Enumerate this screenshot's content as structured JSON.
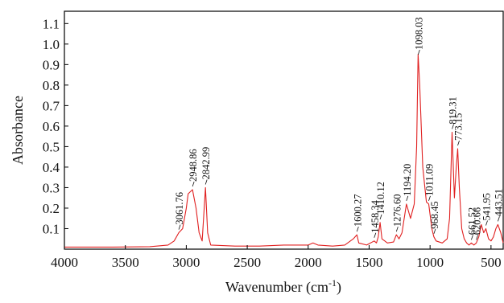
{
  "chart_data": {
    "type": "line",
    "title": "",
    "xlabel": "Wavenumber (cm",
    "xlabel_sup": "-1",
    "xlabel_close": ")",
    "ylabel": "Absorbance",
    "xlim": [
      4000,
      400
    ],
    "x_reversed": true,
    "ylim": [
      0,
      1.16
    ],
    "grid": false,
    "legend": "none",
    "x_ticks": [
      4000,
      3500,
      3000,
      2500,
      2000,
      1500,
      1000,
      500
    ],
    "x_tick_labels": [
      "4000",
      "3500",
      "3000",
      "2500",
      "2000",
      "1500",
      "1000",
      "500"
    ],
    "y_ticks": [
      0.1,
      0.2,
      0.3,
      0.4,
      0.5,
      0.6,
      0.7,
      0.8,
      0.9,
      1.0,
      1.1
    ],
    "y_tick_labels": [
      "0.1",
      "0.2",
      "0.3",
      "0.4",
      "0.5",
      "0.6",
      "0.7",
      "0.8",
      "0.9",
      "1.0",
      "1.1"
    ],
    "line_color": "#e02020",
    "series": [
      {
        "x": [
          4000,
          3600,
          3300,
          3150,
          3100,
          3061.76,
          3030,
          3000,
          2985,
          2948.86,
          2920,
          2895,
          2870,
          2842.99,
          2825,
          2800,
          2600,
          2400,
          2200,
          2000,
          1960,
          1940,
          1920,
          1800,
          1700,
          1630,
          1600.27,
          1585,
          1520,
          1458.34,
          1440,
          1425,
          1410.12,
          1395,
          1350,
          1300,
          1276.6,
          1255,
          1230,
          1194.2,
          1160,
          1130,
          1110,
          1098.03,
          1085,
          1060,
          1030,
          1011.09,
          985,
          968.45,
          950,
          900,
          860,
          840,
          819.31,
          800,
          785,
          773.15,
          760,
          740,
          720,
          700,
          680,
          661.52,
          640,
          620.66,
          600,
          580,
          560,
          541.95,
          520,
          500,
          480,
          460,
          443.51,
          420,
          400
        ],
        "y": [
          0.01,
          0.01,
          0.012,
          0.02,
          0.04,
          0.08,
          0.1,
          0.2,
          0.27,
          0.29,
          0.2,
          0.08,
          0.04,
          0.3,
          0.08,
          0.02,
          0.015,
          0.015,
          0.02,
          0.02,
          0.03,
          0.025,
          0.02,
          0.015,
          0.02,
          0.05,
          0.07,
          0.03,
          0.02,
          0.04,
          0.03,
          0.06,
          0.13,
          0.05,
          0.03,
          0.035,
          0.07,
          0.05,
          0.08,
          0.22,
          0.15,
          0.22,
          0.5,
          0.95,
          0.8,
          0.4,
          0.23,
          0.22,
          0.1,
          0.06,
          0.04,
          0.03,
          0.05,
          0.15,
          0.57,
          0.25,
          0.4,
          0.49,
          0.3,
          0.1,
          0.05,
          0.03,
          0.02,
          0.03,
          0.02,
          0.03,
          0.06,
          0.12,
          0.08,
          0.1,
          0.05,
          0.04,
          0.06,
          0.1,
          0.12,
          0.08,
          0.03
        ]
      }
    ],
    "peaks": [
      {
        "label": "3061.76",
        "x": 3061.76,
        "y": 0.08
      },
      {
        "label": "2948.86",
        "x": 2948.86,
        "y": 0.29
      },
      {
        "label": "2842.99",
        "x": 2842.99,
        "y": 0.3
      },
      {
        "label": "1600.27",
        "x": 1600.27,
        "y": 0.07
      },
      {
        "label": "1458.34",
        "x": 1458.34,
        "y": 0.04
      },
      {
        "label": "1410.12",
        "x": 1410.12,
        "y": 0.13
      },
      {
        "label": "1276.60",
        "x": 1276.6,
        "y": 0.07
      },
      {
        "label": "1194.20",
        "x": 1194.2,
        "y": 0.22
      },
      {
        "label": "1098.03",
        "x": 1098.03,
        "y": 0.95
      },
      {
        "label": "1011.09",
        "x": 1011.09,
        "y": 0.22
      },
      {
        "label": "968.45",
        "x": 968.45,
        "y": 0.06
      },
      {
        "label": "819.31",
        "x": 819.31,
        "y": 0.57
      },
      {
        "label": "773.15",
        "x": 773.15,
        "y": 0.49
      },
      {
        "label": "661.52",
        "x": 661.52,
        "y": 0.03
      },
      {
        "label": "620.66",
        "x": 620.66,
        "y": 0.03
      },
      {
        "label": "541.95",
        "x": 541.95,
        "y": 0.1
      },
      {
        "label": "443.51",
        "x": 443.51,
        "y": 0.12
      }
    ]
  }
}
